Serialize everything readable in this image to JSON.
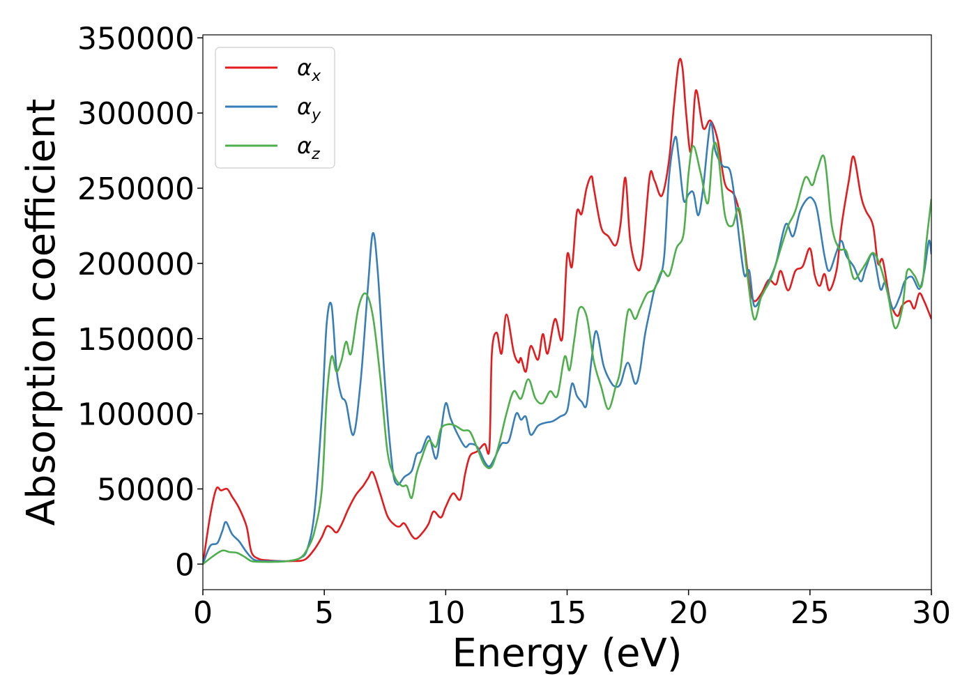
{
  "chart_data": {
    "type": "line",
    "xlabel": "Energy (eV)",
    "ylabel": "Absorption coefficient",
    "xlim": [
      0,
      30
    ],
    "ylim": [
      -17000,
      352000
    ],
    "xticks": [
      0,
      5,
      10,
      15,
      20,
      25,
      30
    ],
    "xtick_labels": [
      "0",
      "5",
      "10",
      "15",
      "20",
      "25",
      "30"
    ],
    "yticks": [
      0,
      50000,
      100000,
      150000,
      200000,
      250000,
      300000,
      350000
    ],
    "ytick_labels": [
      "0",
      "50000",
      "100000",
      "150000",
      "200000",
      "250000",
      "300000",
      "350000"
    ],
    "grid": false,
    "legend_position": "top-left",
    "series": [
      {
        "name": "α_x",
        "legend_base": "α",
        "legend_sub": "x",
        "color": "#e41a1c",
        "x": [
          0,
          0.3,
          0.55,
          0.75,
          1.0,
          1.2,
          1.5,
          1.8,
          2.0,
          2.3,
          2.7,
          3.2,
          3.7,
          4.2,
          4.6,
          4.9,
          5.1,
          5.3,
          5.5,
          5.7,
          6.0,
          6.3,
          6.6,
          6.8,
          7.0,
          7.3,
          7.6,
          7.9,
          8.1,
          8.3,
          8.6,
          8.8,
          9.1,
          9.3,
          9.5,
          9.8,
          10.0,
          10.3,
          10.6,
          10.8,
          11.0,
          11.3,
          11.6,
          11.8,
          11.9,
          12.1,
          12.3,
          12.5,
          12.8,
          13.0,
          13.1,
          13.3,
          13.5,
          13.8,
          14.0,
          14.2,
          14.5,
          14.8,
          15.0,
          15.2,
          15.4,
          15.6,
          15.8,
          16.0,
          16.1,
          16.4,
          16.7,
          17.0,
          17.2,
          17.4,
          17.6,
          17.9,
          18.1,
          18.4,
          18.6,
          18.9,
          19.2,
          19.4,
          19.6,
          19.75,
          19.9,
          20.1,
          20.3,
          20.6,
          20.9,
          21.2,
          21.5,
          21.9,
          22.2,
          22.5,
          22.7,
          23.0,
          23.3,
          23.6,
          23.8,
          24.1,
          24.4,
          24.7,
          25.0,
          25.2,
          25.4,
          25.6,
          25.8,
          26.1,
          26.3,
          26.6,
          26.8,
          27.1,
          27.3,
          27.6,
          27.8,
          28.0,
          28.3,
          28.6,
          28.8,
          29.1,
          29.3,
          29.5,
          29.7,
          30.0
        ],
        "y": [
          0,
          32000,
          50000,
          49000,
          50000,
          45000,
          37000,
          25000,
          8000,
          3500,
          2500,
          2000,
          2000,
          3000,
          10000,
          18000,
          25000,
          24000,
          21000,
          26000,
          37000,
          46000,
          52000,
          57000,
          61000,
          47000,
          32000,
          26000,
          25000,
          27000,
          19000,
          17000,
          22000,
          27000,
          35000,
          31000,
          38000,
          47000,
          43000,
          60000,
          72000,
          75000,
          80000,
          77000,
          140000,
          154000,
          140000,
          166000,
          141000,
          134000,
          137000,
          128000,
          145000,
          136000,
          153000,
          140000,
          163000,
          150000,
          205000,
          198000,
          234000,
          233000,
          250000,
          258000,
          250000,
          224000,
          218000,
          212000,
          226000,
          257000,
          215000,
          196000,
          205000,
          258000,
          255000,
          245000,
          269000,
          305000,
          334000,
          330000,
          300000,
          274000,
          315000,
          290000,
          295000,
          282000,
          253000,
          245000,
          225000,
          186000,
          175000,
          180000,
          189000,
          186000,
          195000,
          182000,
          195000,
          198000,
          210000,
          192000,
          185000,
          193000,
          182000,
          196000,
          225000,
          255000,
          271000,
          245000,
          235000,
          225000,
          200000,
          202000,
          175000,
          165000,
          172000,
          175000,
          170000,
          180000,
          175000,
          163000
        ]
      },
      {
        "name": "α_y",
        "legend_base": "α",
        "legend_sub": "y",
        "color": "#377eb8",
        "x": [
          0,
          0.3,
          0.6,
          0.8,
          0.95,
          1.2,
          1.5,
          1.8,
          2.1,
          2.5,
          3.0,
          3.5,
          4.0,
          4.3,
          4.6,
          4.9,
          5.1,
          5.3,
          5.5,
          5.7,
          5.9,
          6.2,
          6.5,
          6.8,
          7.0,
          7.2,
          7.5,
          7.8,
          8.0,
          8.3,
          8.6,
          8.8,
          9.0,
          9.3,
          9.6,
          9.8,
          10.0,
          10.2,
          10.5,
          10.8,
          11.0,
          11.3,
          11.6,
          11.8,
          12.0,
          12.3,
          12.6,
          12.9,
          13.1,
          13.3,
          13.5,
          13.8,
          14.1,
          14.4,
          14.7,
          15.0,
          15.2,
          15.4,
          15.6,
          15.8,
          16.0,
          16.2,
          16.5,
          16.8,
          17.0,
          17.2,
          17.5,
          17.8,
          18.0,
          18.2,
          18.4,
          18.6,
          18.8,
          19.0,
          19.2,
          19.45,
          19.6,
          19.8,
          20.0,
          20.2,
          20.4,
          20.6,
          20.9,
          21.1,
          21.4,
          21.7,
          21.9,
          22.1,
          22.3,
          22.5,
          22.7,
          23.0,
          23.3,
          23.6,
          24.0,
          24.3,
          24.6,
          24.9,
          25.1,
          25.3,
          25.6,
          25.8,
          26.1,
          26.3,
          26.5,
          26.8,
          27.1,
          27.3,
          27.6,
          27.9,
          28.1,
          28.4,
          28.7,
          28.9,
          29.2,
          29.5,
          29.7,
          29.9,
          30.0
        ],
        "y": [
          0,
          12000,
          14000,
          22000,
          28000,
          20000,
          15000,
          8000,
          3000,
          2000,
          2000,
          2000,
          4000,
          10000,
          35000,
          100000,
          160000,
          172000,
          130000,
          112000,
          107000,
          86000,
          122000,
          185000,
          220000,
          195000,
          120000,
          65000,
          53000,
          58000,
          62000,
          73000,
          75000,
          85000,
          70000,
          88000,
          107000,
          97000,
          86000,
          78000,
          80000,
          78000,
          68000,
          65000,
          70000,
          80000,
          82000,
          100000,
          96000,
          98000,
          86000,
          92000,
          94000,
          95000,
          98000,
          102000,
          120000,
          112000,
          108000,
          106000,
          135000,
          155000,
          132000,
          121000,
          118000,
          120000,
          134000,
          120000,
          129000,
          152000,
          168000,
          183000,
          190000,
          205000,
          258000,
          284000,
          270000,
          242000,
          246000,
          247000,
          232000,
          250000,
          293000,
          275000,
          265000,
          262000,
          243000,
          215000,
          192000,
          195000,
          172000,
          178000,
          188000,
          200000,
          226000,
          218000,
          235000,
          243000,
          243000,
          235000,
          205000,
          195000,
          208000,
          215000,
          205000,
          198000,
          188000,
          197000,
          206000,
          183000,
          187000,
          170000,
          178000,
          188000,
          191000,
          183000,
          194000,
          215000,
          206000
        ]
      },
      {
        "name": "α_z",
        "legend_base": "α",
        "legend_sub": "z",
        "color": "#4daf4a",
        "x": [
          0,
          0.4,
          0.8,
          1.1,
          1.4,
          1.7,
          2.0,
          2.4,
          3.0,
          3.5,
          4.0,
          4.3,
          4.6,
          4.9,
          5.1,
          5.3,
          5.5,
          5.7,
          5.9,
          6.1,
          6.4,
          6.7,
          7.0,
          7.3,
          7.6,
          7.9,
          8.2,
          8.4,
          8.6,
          8.8,
          9.0,
          9.3,
          9.6,
          9.8,
          10.1,
          10.4,
          10.7,
          11.0,
          11.3,
          11.6,
          11.9,
          12.2,
          12.5,
          12.8,
          13.1,
          13.4,
          13.7,
          14.0,
          14.3,
          14.6,
          14.9,
          15.1,
          15.3,
          15.5,
          15.8,
          16.1,
          16.4,
          16.7,
          17.0,
          17.2,
          17.5,
          17.8,
          18.0,
          18.3,
          18.6,
          18.9,
          19.2,
          19.5,
          19.8,
          20.0,
          20.2,
          20.5,
          20.8,
          21.0,
          21.2,
          21.5,
          21.8,
          22.1,
          22.4,
          22.7,
          23.0,
          23.4,
          23.8,
          24.1,
          24.4,
          24.8,
          25.1,
          25.3,
          25.6,
          25.9,
          26.2,
          26.5,
          26.8,
          27.1,
          27.3,
          27.6,
          27.9,
          28.2,
          28.5,
          28.8,
          29.0,
          29.3,
          29.6,
          29.8,
          30.0
        ],
        "y": [
          0,
          5000,
          9000,
          8000,
          7500,
          5000,
          2000,
          1500,
          1500,
          2000,
          4000,
          10000,
          22000,
          50000,
          110000,
          138000,
          128000,
          135000,
          148000,
          140000,
          170000,
          180000,
          165000,
          125000,
          75000,
          58000,
          52000,
          52000,
          44000,
          60000,
          70000,
          82000,
          78000,
          90000,
          93000,
          92000,
          89000,
          88000,
          77000,
          66000,
          65000,
          80000,
          100000,
          115000,
          110000,
          123000,
          110000,
          107000,
          115000,
          112000,
          138000,
          129000,
          150000,
          170000,
          165000,
          135000,
          118000,
          103000,
          118000,
          130000,
          168000,
          163000,
          170000,
          180000,
          183000,
          195000,
          192000,
          210000,
          220000,
          260000,
          278000,
          260000,
          240000,
          276000,
          275000,
          232000,
          225000,
          236000,
          195000,
          163000,
          178000,
          190000,
          210000,
          225000,
          235000,
          257000,
          252000,
          262000,
          270000,
          225000,
          210000,
          208000,
          190000,
          195000,
          200000,
          207000,
          198000,
          180000,
          157000,
          170000,
          195000,
          192000,
          185000,
          215000,
          243000
        ]
      }
    ]
  }
}
